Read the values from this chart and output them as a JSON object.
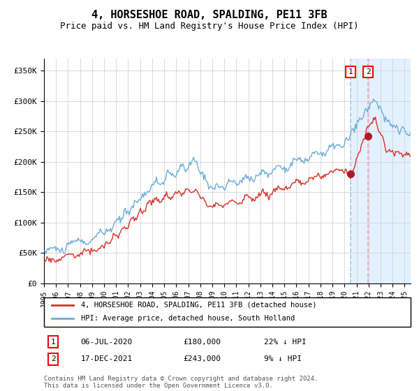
{
  "title": "4, HORSESHOE ROAD, SPALDING, PE11 3FB",
  "subtitle": "Price paid vs. HM Land Registry's House Price Index (HPI)",
  "ylim": [
    0,
    370000
  ],
  "yticks": [
    0,
    50000,
    100000,
    150000,
    200000,
    250000,
    300000,
    350000
  ],
  "ytick_labels": [
    "£0",
    "£50K",
    "£100K",
    "£150K",
    "£200K",
    "£250K",
    "£300K",
    "£350K"
  ],
  "hpi_color": "#6baed6",
  "price_color": "#d73027",
  "marker_color": "#b2182b",
  "vline1_color": "#aec7e8",
  "vline2_color": "#fa9fb5",
  "shade_color": "#ddeeff",
  "transaction1_date": 2020.51,
  "transaction1_price": 180000,
  "transaction2_date": 2021.96,
  "transaction2_price": 243000,
  "legend_label_red": "4, HORSESHOE ROAD, SPALDING, PE11 3FB (detached house)",
  "legend_label_blue": "HPI: Average price, detached house, South Holland",
  "table_row1": [
    "1",
    "06-JUL-2020",
    "£180,000",
    "22% ↓ HPI"
  ],
  "table_row2": [
    "2",
    "17-DEC-2021",
    "£243,000",
    "9% ↓ HPI"
  ],
  "footer": "Contains HM Land Registry data © Crown copyright and database right 2024.\nThis data is licensed under the Open Government Licence v3.0.",
  "title_fontsize": 11,
  "subtitle_fontsize": 9,
  "tick_fontsize": 8,
  "background_color": "#ffffff",
  "grid_color": "#cccccc"
}
